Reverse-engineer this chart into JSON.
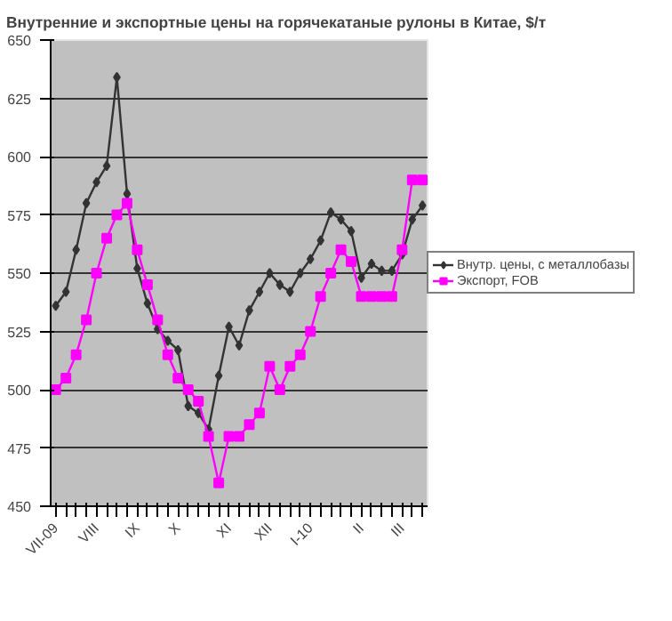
{
  "chart_data": {
    "type": "line",
    "title": "Внутренние и экспортные цены на горячекатаные рулоны в Китае, $/т",
    "categories": [
      "VII-09",
      null,
      null,
      null,
      "VIII",
      null,
      null,
      null,
      "IX",
      null,
      null,
      null,
      "X",
      null,
      null,
      null,
      null,
      "XI",
      null,
      null,
      null,
      "XII",
      null,
      null,
      null,
      "I-10",
      null,
      null,
      null,
      null,
      "II",
      null,
      null,
      null,
      "III",
      null,
      null
    ],
    "series": [
      {
        "name": "Внутр. цены, с металлобазы",
        "color": "#333333",
        "marker": "diamond",
        "values": [
          536,
          542,
          560,
          580,
          589,
          596,
          634,
          584,
          552,
          537,
          526,
          521,
          517,
          493,
          490,
          483,
          506,
          527,
          519,
          534,
          542,
          550,
          545,
          542,
          550,
          556,
          564,
          576,
          573,
          568,
          548,
          554,
          551,
          551,
          558,
          573,
          579
        ]
      },
      {
        "name": "Экспорт, FOB",
        "color": "#ff00ff",
        "marker": "square",
        "values": [
          500,
          505,
          515,
          530,
          550,
          565,
          575,
          580,
          560,
          545,
          530,
          515,
          505,
          500,
          495,
          480,
          460,
          480,
          480,
          485,
          490,
          510,
          500,
          510,
          515,
          525,
          540,
          550,
          560,
          555,
          540,
          540,
          540,
          540,
          560,
          590,
          590
        ]
      }
    ],
    "ylim": [
      450,
      650
    ],
    "yticks": [
      450,
      475,
      500,
      525,
      550,
      575,
      600,
      625,
      650
    ],
    "grid": "y",
    "legend": "right"
  }
}
